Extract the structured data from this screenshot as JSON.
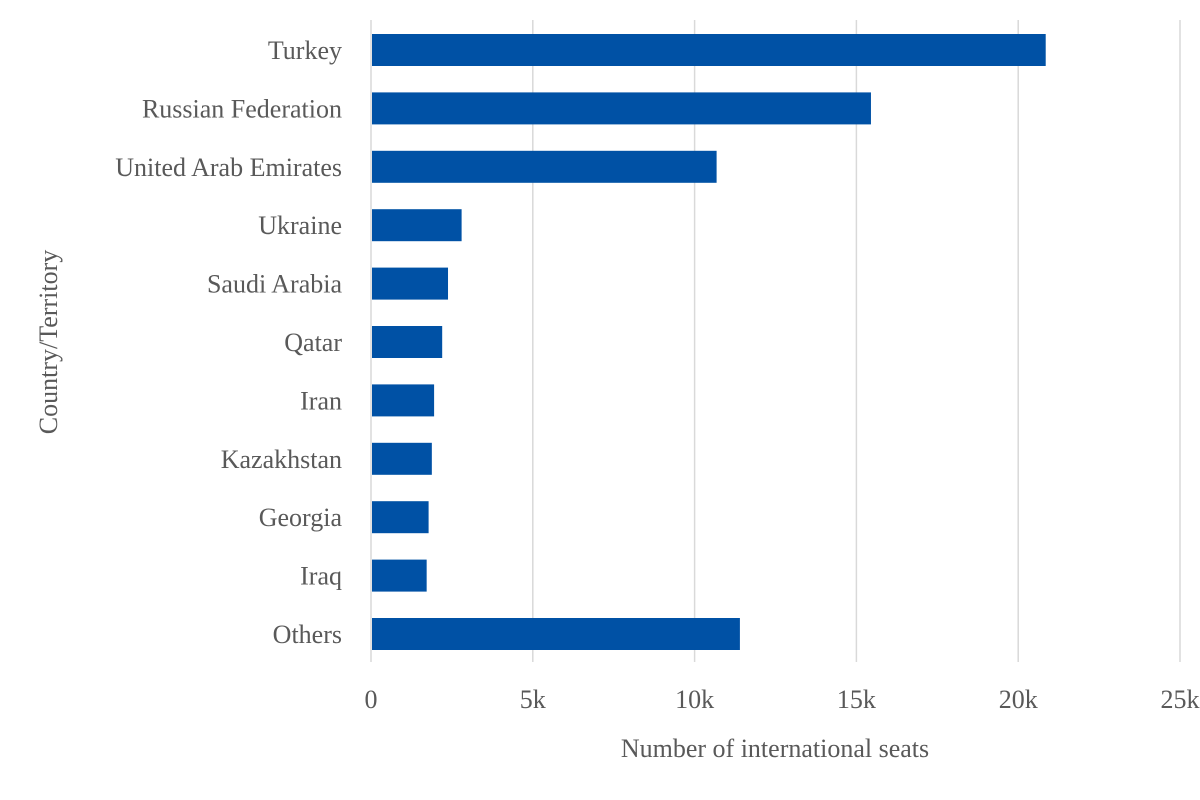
{
  "chart_data": {
    "type": "bar",
    "orientation": "horizontal",
    "categories": [
      "Turkey",
      "Russian Federation",
      "United Arab Emirates",
      "Ukraine",
      "Saudi Arabia",
      "Qatar",
      "Iran",
      "Kazakhstan",
      "Georgia",
      "Iraq",
      "Others"
    ],
    "series": [
      {
        "values": [
          20850,
          15450,
          10680,
          2800,
          2380,
          2200,
          1950,
          1880,
          1780,
          1720,
          11400
        ]
      }
    ],
    "xlabel": "Number of international seats",
    "ylabel": "Country/Territory",
    "xlim": [
      0,
      25000
    ],
    "x_ticks": [
      "0",
      "5k",
      "10k",
      "15k",
      "20k",
      "25k"
    ],
    "grid": true,
    "bar_color": "#0051a5"
  }
}
